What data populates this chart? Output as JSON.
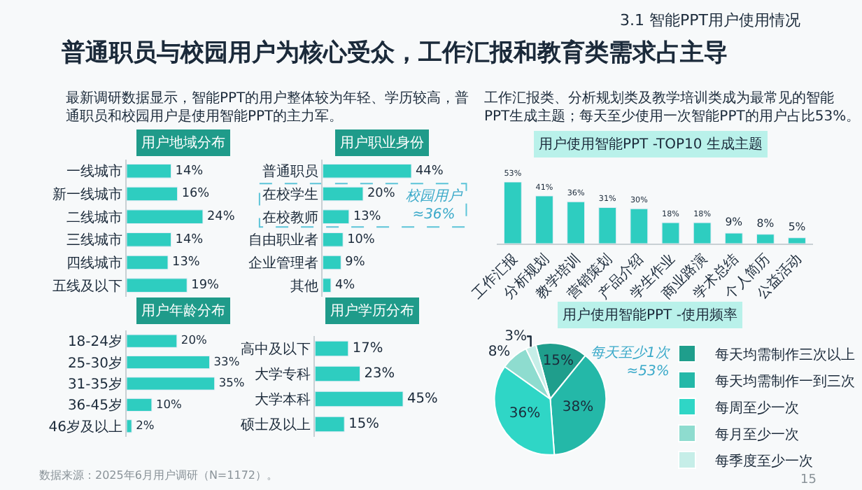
{
  "chart_data": [
    {
      "type": "bar",
      "orientation": "horizontal",
      "title": "用户地域分布",
      "categories": [
        "一线城市",
        "新一线城市",
        "二线城市",
        "三线城市",
        "四线城市",
        "五线及以下"
      ],
      "values": [
        14,
        16,
        24,
        14,
        13,
        19
      ],
      "value_labels": [
        "14%",
        "16%",
        "24%",
        "14%",
        "13%",
        "19%"
      ],
      "color": "#2ecdc0",
      "annotations": [
        "3.1 智能PPT用户使用情况",
        "普通职员与校园用户为核心受众，工作汇报和教育类需求占主导",
        "最新调研数据显示，智能PPT的用户整体较为年轻、学历较高，普",
        "通职员和校园用户是使用智能PPT的主力军。",
        "数据来源：2025年6月用户调研（N=1172）。",
        "15"
      ]
    },
    {
      "type": "bar",
      "orientation": "horizontal",
      "title": "用户职业身份",
      "categories": [
        "普通职员",
        "在校学生",
        "在校教师",
        "自由职业者",
        "企业管理者",
        "其他"
      ],
      "values": [
        44,
        20,
        13,
        10,
        9,
        4
      ],
      "value_labels": [
        "44%",
        "20%",
        "13%",
        "10%",
        "9%",
        "4%"
      ],
      "color": "#2ecdc0",
      "annotations": [
        "校园用户\n≈36%"
      ]
    },
    {
      "type": "bar",
      "orientation": "horizontal",
      "title": "用户年龄分布",
      "categories": [
        "18-24岁",
        "25-30岁",
        "31-35岁",
        "36-45岁",
        "46岁及以上"
      ],
      "values": [
        20,
        33,
        35,
        10,
        2
      ],
      "value_labels": [
        "20%",
        "33%",
        "35%",
        "10%",
        "2%"
      ],
      "color": "#2ecdc0"
    },
    {
      "type": "bar",
      "orientation": "horizontal",
      "title": "用户学历分布",
      "categories": [
        "高中及以下",
        "大学专科",
        "大学本科",
        "硕士及以上"
      ],
      "values": [
        17,
        23,
        45,
        15
      ],
      "value_labels": [
        "17%",
        "23%",
        "45%",
        "15%"
      ],
      "color": "#2ecdc0"
    },
    {
      "type": "bar",
      "title": "用户使用智能PPT -TOP10 生成主题",
      "categories": [
        "工作汇报",
        "分析规划",
        "教学培训",
        "营销策划",
        "产品介绍",
        "学生作业",
        "商业路演",
        "学术总结",
        "个人简历",
        "公益活动"
      ],
      "values": [
        53,
        41,
        36,
        31,
        30,
        18,
        18,
        9,
        8,
        5
      ],
      "value_labels": [
        "53%",
        "41%",
        "36%",
        "31%",
        "30%",
        "18%",
        "18%",
        "9%",
        "8%",
        "5%"
      ],
      "color": "#2ecdc0",
      "annotations": [
        "工作汇报类、分析规划类及教学培训类成为最常见的智能",
        "PPT生成主题；每天至少使用一次智能PPT的用户占比53%。"
      ]
    },
    {
      "type": "pie",
      "title": "用户使用智能PPT -使用频率",
      "categories": [
        "每天均需制作三次以上",
        "每天均需制作一到三次",
        "每周至少一次",
        "每月至少一次",
        "每季度至少一次"
      ],
      "values": [
        15,
        38,
        36,
        8,
        3
      ],
      "value_labels": [
        "15%",
        "38%",
        "36%",
        "8%",
        "3%"
      ],
      "colors": [
        "#1f9e8c",
        "#24b8a8",
        "#2fd6c6",
        "#8edccf",
        "#c6eee8"
      ],
      "legend": "right",
      "annotations": [
        "每天至少1次\n≈53%"
      ]
    }
  ]
}
